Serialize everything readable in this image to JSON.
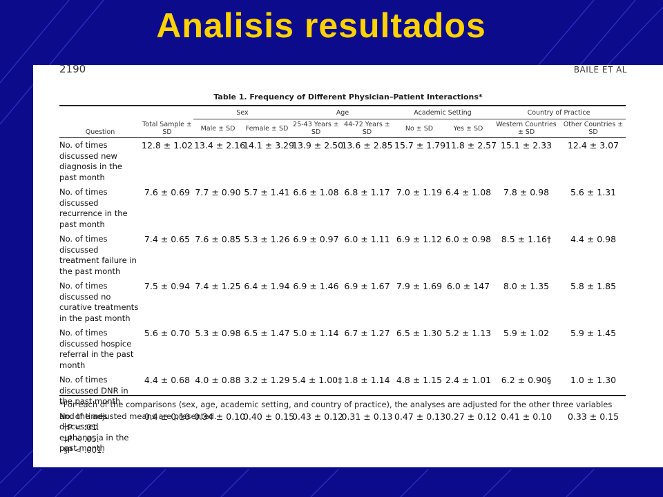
{
  "slide": {
    "title": "Analisis resultados"
  },
  "document": {
    "page_number": "2190",
    "running_head": "BAILE ET AL",
    "table_caption": "Table 1.   Frequency of Different Physician–Patient Interactions*",
    "column_groups": [
      "Sex",
      "Age",
      "Academic Setting",
      "Country of Practice"
    ],
    "column_headers": {
      "question": "Question",
      "total": "Total Sample ± SD",
      "male": "Male ± SD",
      "female": "Female ± SD",
      "age_young": "25-43 Years ± SD",
      "age_old": "44-72 Years ± SD",
      "academic_no": "No ± SD",
      "academic_yes": "Yes ± SD",
      "western": "Western Countries ± SD",
      "other": "Other Countries ± SD"
    },
    "rows": [
      {
        "question": "No. of times discussed new diagnosis in the past month",
        "values": [
          "12.8 ± 1.02",
          "13.4 ± 2.16",
          "14.1 ± 3.29",
          "13.9 ± 2.50",
          "13.6 ± 2.85",
          "15.7 ± 1.79",
          "11.8 ± 2.57",
          "15.1 ± 2.33",
          "12.4 ± 3.07"
        ]
      },
      {
        "question": "No. of times discussed recurrence in the past month",
        "values": [
          "7.6 ± 0.69",
          "7.7 ± 0.90",
          "5.7 ± 1.41",
          "6.6 ± 1.08",
          "6.8 ± 1.17",
          "7.0 ± 1.19",
          "6.4 ± 1.08",
          "7.8 ± 0.98",
          "5.6 ± 1.31"
        ]
      },
      {
        "question": "No. of times discussed treatment failure in the past month",
        "values": [
          "7.4 ± 0.65",
          "7.6 ± 0.85",
          "5.3 ± 1.26",
          "6.9 ± 0.97",
          "6.0 ± 1.11",
          "6.9 ± 1.12",
          "6.0 ± 0.98",
          "8.5 ± 1.16†",
          "4.4 ± 0.98"
        ]
      },
      {
        "question": "No. of times discussed no curative treatments in the past month",
        "values": [
          "7.5 ± 0.94",
          "7.4 ± 1.25",
          "6.4 ± 1.94",
          "6.9 ± 1.46",
          "6.9 ± 1.67",
          "7.9 ± 1.69",
          "6.0 ± 147",
          "8.0 ± 1.35",
          "5.8 ± 1.85"
        ]
      },
      {
        "question": "No. of times discussed hospice referral in the past month",
        "values": [
          "5.6 ± 0.70",
          "5.3 ± 0.98",
          "6.5 ± 1.47",
          "5.0 ± 1.14",
          "6.7 ± 1.27",
          "6.5 ± 1.30",
          "5.2 ± 1.13",
          "5.9 ± 1.02",
          "5.9 ± 1.45"
        ]
      },
      {
        "question": "No. of times discussed DNR in the past month",
        "values": [
          "4.4 ± 0.68",
          "4.0 ± 0.88",
          "3.2 ± 1.29",
          "5.4 ± 1.00‡",
          "1.8 ± 1.14",
          "4.8 ± 1.15",
          "2.4 ± 1.01",
          "6.2 ± 0.90§",
          "1.0 ± 1.30"
        ]
      },
      {
        "question": "No. of times discussed euthanasia in the past month",
        "values": [
          "0.4 ± 0.10",
          "0.34 ± 0.10",
          "0.40 ± 0.15",
          "0.43 ± 0.12",
          "0.31 ± 0.13",
          "0.47 ± 0.13",
          "0.27 ± 0.12",
          "0.41 ± 0.10",
          "0.33 ± 0.15"
        ]
      }
    ],
    "footnotes": {
      "note": "*For each of the comparisons (sex, age, academic setting, and country of practice), the analyses are adjusted for the other three variables and the adjusted means are presented.",
      "dagger": "†P < .01.",
      "double_dagger": "‡P < .05.",
      "section": "§P < .001."
    }
  },
  "colors": {
    "background": "#0b0b8c",
    "title": "#ffd200",
    "document": "#ffffff"
  }
}
